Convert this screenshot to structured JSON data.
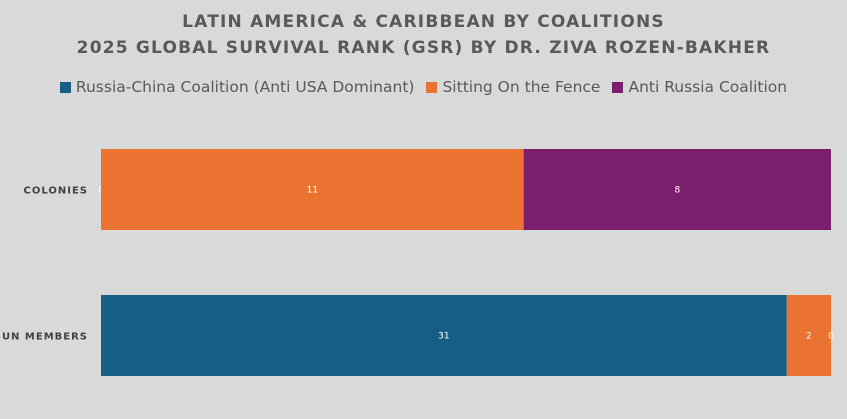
{
  "chart_data": {
    "type": "bar",
    "orientation": "horizontal",
    "stacked": "percent",
    "title": "LATIN AMERICA & CARIBBEAN BY COALITIONS",
    "subtitle": "2025 GLOBAL SURVIVAL RANK (GSR) BY DR. ZIVA ROZEN-BAKHER",
    "categories": [
      "COLONIES",
      "UN MEMBERS"
    ],
    "series": [
      {
        "name": "Russia-China Coalition (Anti USA Dominant)",
        "color": "#175e84",
        "values": [
          0,
          31
        ]
      },
      {
        "name": "Sitting On the Fence",
        "color": "#ea7331",
        "values": [
          11,
          2
        ]
      },
      {
        "name": "Anti Russia Coalition",
        "color": "#7b1f6c",
        "values": [
          8,
          0
        ]
      }
    ],
    "legend_position": "top",
    "grid": false
  }
}
